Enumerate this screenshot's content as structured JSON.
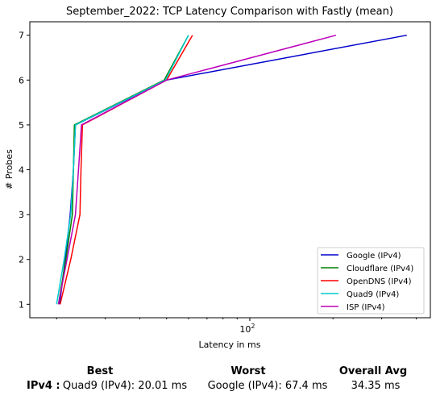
{
  "chart_data": {
    "type": "line",
    "title": "September_2022: TCP Latency Comparison with Fastly (mean)",
    "xlabel": "Latency in ms",
    "ylabel": "# Probes",
    "xscale": "log",
    "xlim": [
      16,
      450
    ],
    "ylim": [
      0.7,
      7.3
    ],
    "x_tick_labels": [
      {
        "value": 100,
        "base": "10",
        "exp": "2"
      }
    ],
    "y_ticks": [
      1,
      2,
      3,
      4,
      5,
      6,
      7
    ],
    "grid": false,
    "legend_position": "lower-right",
    "series": [
      {
        "name": "Google (IPv4)",
        "color": "#0000cc",
        "x": [
          20.5,
          21.5,
          22.4,
          23.0,
          23.4,
          50.0,
          370.0
        ],
        "y": [
          1,
          2,
          3,
          4,
          5,
          6,
          7
        ]
      },
      {
        "name": "Cloudflare (IPv4)",
        "color": "#008000",
        "x": [
          20.3,
          21.6,
          22.8,
          23.0,
          23.2,
          49.0,
          60.0
        ],
        "y": [
          1,
          2,
          3,
          4,
          5,
          6,
          7
        ]
      },
      {
        "name": "OpenDNS (IPv4)",
        "color": "#ff0000",
        "x": [
          20.6,
          22.5,
          24.3,
          24.5,
          24.8,
          50.0,
          62.0
        ],
        "y": [
          1,
          2,
          3,
          4,
          5,
          6,
          7
        ]
      },
      {
        "name": "Quad9 (IPv4)",
        "color": "#00cccc",
        "x": [
          20.0,
          21.3,
          22.5,
          23.0,
          23.4,
          49.5,
          60.0
        ],
        "y": [
          1,
          2,
          3,
          4,
          5,
          6,
          7
        ]
      },
      {
        "name": "ISP (IPv4)",
        "color": "#bb00bb",
        "x": [
          20.3,
          21.8,
          23.4,
          24.0,
          24.6,
          50.0,
          205.0
        ],
        "y": [
          1,
          2,
          3,
          4,
          5,
          6,
          7
        ]
      }
    ]
  },
  "summary": {
    "best_header": "Best",
    "worst_header": "Worst",
    "avg_header": "Overall Avg",
    "row_label": "IPv4 :",
    "best_value": "Quad9 (IPv4): 20.01 ms",
    "worst_value": "Google (IPv4): 67.4 ms",
    "avg_value": "34.35 ms"
  }
}
